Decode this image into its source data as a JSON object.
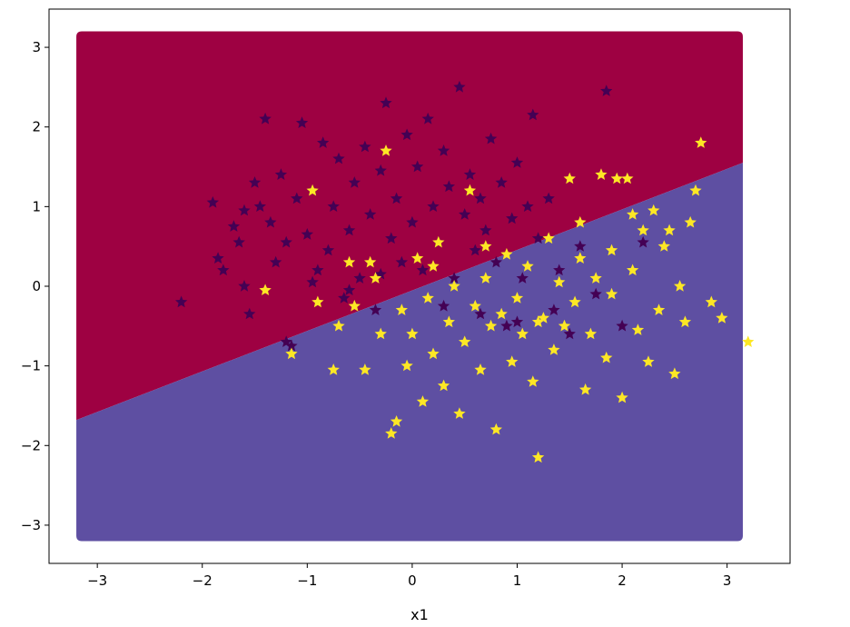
{
  "chart_data": {
    "type": "scatter",
    "title": "",
    "xlabel": "x1",
    "ylabel": "",
    "xlim": [
      -3.46,
      3.6
    ],
    "ylim": [
      -3.48,
      3.48
    ],
    "x_ticks": [
      -3,
      -2,
      -1,
      0,
      1,
      2,
      3
    ],
    "x_tick_labels": [
      "−3",
      "−2",
      "−1",
      "0",
      "1",
      "2",
      "3"
    ],
    "y_ticks": [
      -3,
      -2,
      -1,
      0,
      1,
      2,
      3
    ],
    "y_tick_labels": [
      "−3",
      "−2",
      "−1",
      "0",
      "1",
      "2",
      "3"
    ],
    "grid": false,
    "legend": "none",
    "decision_region": {
      "x_range": [
        -3.2,
        3.15
      ],
      "y_range": [
        -3.2,
        3.2
      ],
      "boundary_line": [
        [
          -3.2,
          -1.68
        ],
        [
          3.15,
          1.55
        ]
      ],
      "upper_class_color": "#9e0142",
      "lower_class_color": "#5e4fa2"
    },
    "series": [
      {
        "class": 0,
        "color": "#440154",
        "marker": "star",
        "points": [
          [
            -2.2,
            -0.2
          ],
          [
            -1.9,
            1.05
          ],
          [
            -1.85,
            0.35
          ],
          [
            -1.8,
            0.2
          ],
          [
            -1.7,
            0.75
          ],
          [
            -1.65,
            0.55
          ],
          [
            -1.6,
            0.0
          ],
          [
            -1.55,
            -0.35
          ],
          [
            -1.5,
            1.3
          ],
          [
            -1.45,
            1.0
          ],
          [
            -1.4,
            2.1
          ],
          [
            -1.35,
            0.8
          ],
          [
            -1.3,
            0.3
          ],
          [
            -1.25,
            1.4
          ],
          [
            -1.2,
            0.55
          ],
          [
            -1.15,
            -0.75
          ],
          [
            -1.1,
            1.1
          ],
          [
            -1.05,
            2.05
          ],
          [
            -1.0,
            0.65
          ],
          [
            -0.95,
            1.2
          ],
          [
            -0.9,
            0.2
          ],
          [
            -0.85,
            1.8
          ],
          [
            -0.8,
            0.45
          ],
          [
            -0.75,
            1.0
          ],
          [
            -0.7,
            1.6
          ],
          [
            -0.65,
            -0.15
          ],
          [
            -0.6,
            0.7
          ],
          [
            -0.55,
            1.3
          ],
          [
            -0.5,
            0.1
          ],
          [
            -0.45,
            1.75
          ],
          [
            -0.4,
            0.9
          ],
          [
            -0.35,
            -0.3
          ],
          [
            -0.3,
            1.45
          ],
          [
            -0.25,
            2.3
          ],
          [
            -0.2,
            0.6
          ],
          [
            -0.15,
            1.1
          ],
          [
            -0.1,
            0.3
          ],
          [
            -0.05,
            1.9
          ],
          [
            0.0,
            0.8
          ],
          [
            0.05,
            1.5
          ],
          [
            0.1,
            0.2
          ],
          [
            0.15,
            2.1
          ],
          [
            0.2,
            1.0
          ],
          [
            0.25,
            0.55
          ],
          [
            0.3,
            1.7
          ],
          [
            0.35,
            1.25
          ],
          [
            0.4,
            0.1
          ],
          [
            0.45,
            2.5
          ],
          [
            0.5,
            0.9
          ],
          [
            0.55,
            1.4
          ],
          [
            0.6,
            0.45
          ],
          [
            0.65,
            1.1
          ],
          [
            0.7,
            0.7
          ],
          [
            0.75,
            1.85
          ],
          [
            0.8,
            0.3
          ],
          [
            0.85,
            1.3
          ],
          [
            0.9,
            -0.5
          ],
          [
            0.95,
            0.85
          ],
          [
            1.0,
            1.55
          ],
          [
            1.05,
            0.1
          ],
          [
            1.1,
            1.0
          ],
          [
            1.15,
            2.15
          ],
          [
            1.2,
            0.6
          ],
          [
            1.3,
            1.1
          ],
          [
            1.4,
            0.2
          ],
          [
            1.5,
            -0.6
          ],
          [
            1.6,
            0.5
          ],
          [
            1.75,
            -0.1
          ],
          [
            1.85,
            2.45
          ],
          [
            2.0,
            -0.5
          ],
          [
            2.2,
            0.55
          ],
          [
            -1.2,
            -0.7
          ],
          [
            -0.95,
            0.05
          ],
          [
            -0.6,
            -0.05
          ],
          [
            -0.3,
            0.15
          ],
          [
            0.3,
            -0.25
          ],
          [
            0.65,
            -0.35
          ],
          [
            1.0,
            -0.45
          ],
          [
            1.35,
            -0.3
          ],
          [
            -1.6,
            0.95
          ]
        ]
      },
      {
        "class": 1,
        "color": "#fde725",
        "marker": "star",
        "points": [
          [
            -1.4,
            -0.05
          ],
          [
            -1.15,
            -0.85
          ],
          [
            -0.95,
            1.2
          ],
          [
            -0.9,
            -0.2
          ],
          [
            -0.75,
            -1.05
          ],
          [
            -0.7,
            -0.5
          ],
          [
            -0.55,
            -0.25
          ],
          [
            -0.45,
            -1.05
          ],
          [
            -0.35,
            0.1
          ],
          [
            -0.3,
            -0.6
          ],
          [
            -0.25,
            1.7
          ],
          [
            -0.2,
            -1.85
          ],
          [
            -0.15,
            -1.7
          ],
          [
            -0.1,
            -0.3
          ],
          [
            -0.05,
            -1.0
          ],
          [
            0.0,
            -0.6
          ],
          [
            0.05,
            0.35
          ],
          [
            0.1,
            -1.45
          ],
          [
            0.15,
            -0.15
          ],
          [
            0.2,
            -0.85
          ],
          [
            0.25,
            0.55
          ],
          [
            0.3,
            -1.25
          ],
          [
            0.35,
            -0.45
          ],
          [
            0.4,
            0.0
          ],
          [
            0.45,
            -1.6
          ],
          [
            0.5,
            -0.7
          ],
          [
            0.55,
            1.2
          ],
          [
            0.6,
            -0.25
          ],
          [
            0.65,
            -1.05
          ],
          [
            0.7,
            0.1
          ],
          [
            0.75,
            -0.5
          ],
          [
            0.8,
            -1.8
          ],
          [
            0.85,
            -0.35
          ],
          [
            0.9,
            0.4
          ],
          [
            0.95,
            -0.95
          ],
          [
            1.0,
            -0.15
          ],
          [
            1.05,
            -0.6
          ],
          [
            1.1,
            0.25
          ],
          [
            1.15,
            -1.2
          ],
          [
            1.2,
            -2.15
          ],
          [
            1.25,
            -0.4
          ],
          [
            1.3,
            0.6
          ],
          [
            1.35,
            -0.8
          ],
          [
            1.4,
            0.05
          ],
          [
            1.45,
            -0.5
          ],
          [
            1.5,
            1.35
          ],
          [
            1.55,
            -0.2
          ],
          [
            1.6,
            0.35
          ],
          [
            1.65,
            -1.3
          ],
          [
            1.7,
            -0.6
          ],
          [
            1.75,
            0.1
          ],
          [
            1.8,
            1.4
          ],
          [
            1.85,
            -0.9
          ],
          [
            1.9,
            0.45
          ],
          [
            1.95,
            1.35
          ],
          [
            2.0,
            -1.4
          ],
          [
            2.05,
            1.35
          ],
          [
            2.1,
            0.2
          ],
          [
            2.15,
            -0.55
          ],
          [
            2.2,
            0.7
          ],
          [
            2.25,
            -0.95
          ],
          [
            2.3,
            0.95
          ],
          [
            2.35,
            -0.3
          ],
          [
            2.4,
            0.5
          ],
          [
            2.45,
            0.7
          ],
          [
            2.5,
            -1.1
          ],
          [
            2.55,
            0.0
          ],
          [
            2.6,
            -0.45
          ],
          [
            2.65,
            0.8
          ],
          [
            2.7,
            1.2
          ],
          [
            2.75,
            1.8
          ],
          [
            2.85,
            -0.2
          ],
          [
            2.95,
            -0.4
          ],
          [
            3.2,
            -0.7
          ],
          [
            -0.4,
            0.3
          ],
          [
            0.2,
            0.25
          ],
          [
            0.7,
            0.5
          ],
          [
            1.2,
            -0.45
          ],
          [
            1.6,
            0.8
          ],
          [
            1.9,
            -0.1
          ],
          [
            2.1,
            0.9
          ],
          [
            -0.6,
            0.3
          ]
        ]
      }
    ]
  }
}
